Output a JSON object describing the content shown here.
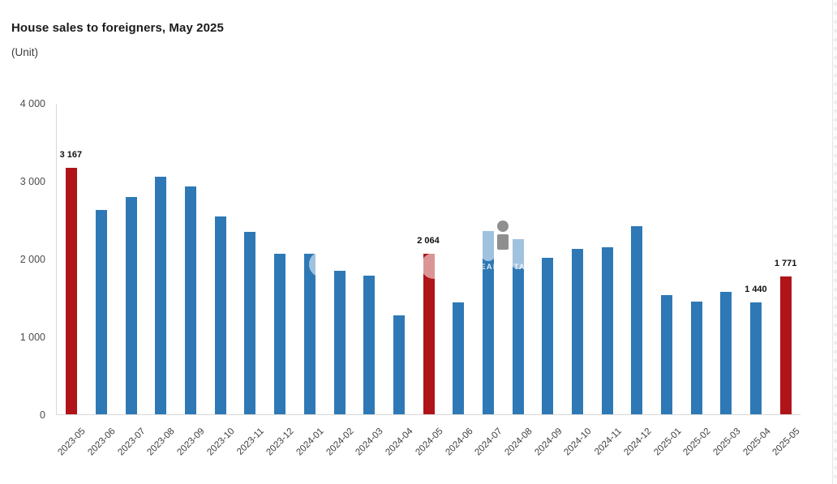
{
  "chart_data": {
    "type": "bar",
    "title": "House sales to foreigners, May 2025",
    "unit_label": "(Unit)",
    "xlabel": "",
    "ylabel": "",
    "ylim": [
      0,
      4000
    ],
    "grid": false,
    "legend": false,
    "bar_color": "#2e79b5",
    "highlight_color": "#b01419",
    "yticks": [
      {
        "value": 0,
        "label": "0"
      },
      {
        "value": 1000,
        "label": "1 000"
      },
      {
        "value": 2000,
        "label": "2 000"
      },
      {
        "value": 3000,
        "label": "3 000"
      },
      {
        "value": 4000,
        "label": "4 000"
      }
    ],
    "categories": [
      "2023-05",
      "2023-06",
      "2023-07",
      "2023-08",
      "2023-09",
      "2023-10",
      "2023-11",
      "2023-12",
      "2024-01",
      "2024-02",
      "2024-03",
      "2024-04",
      "2024-05",
      "2024-06",
      "2024-07",
      "2024-08",
      "2024-09",
      "2024-10",
      "2024-11",
      "2024-12",
      "2025-01",
      "2025-02",
      "2025-03",
      "2025-04",
      "2025-05"
    ],
    "values": [
      3167,
      2625,
      2795,
      3055,
      2930,
      2540,
      2340,
      2060,
      2065,
      1845,
      1780,
      1270,
      2064,
      1440,
      2350,
      2255,
      2015,
      2130,
      2150,
      2415,
      1535,
      1445,
      1570,
      1440,
      1771
    ],
    "highlighted_categories": [
      "2023-05",
      "2024-05",
      "2025-05"
    ],
    "data_labels": {
      "2023-05": "3 167",
      "2024-05": "2 064",
      "2025-04": "1 440",
      "2025-05": "1 771"
    }
  },
  "watermark": {
    "text": "REAL ESTATE"
  }
}
